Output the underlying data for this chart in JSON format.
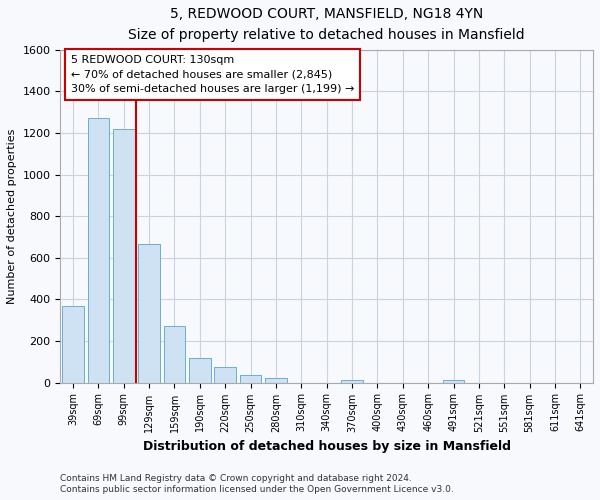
{
  "title": "5, REDWOOD COURT, MANSFIELD, NG18 4YN",
  "subtitle": "Size of property relative to detached houses in Mansfield",
  "xlabel": "Distribution of detached houses by size in Mansfield",
  "ylabel": "Number of detached properties",
  "bar_labels": [
    "39sqm",
    "69sqm",
    "99sqm",
    "129sqm",
    "159sqm",
    "190sqm",
    "220sqm",
    "250sqm",
    "280sqm",
    "310sqm",
    "340sqm",
    "370sqm",
    "400sqm",
    "430sqm",
    "460sqm",
    "491sqm",
    "521sqm",
    "551sqm",
    "581sqm",
    "611sqm",
    "641sqm"
  ],
  "bar_values": [
    370,
    1270,
    1220,
    665,
    270,
    120,
    75,
    38,
    20,
    0,
    0,
    15,
    0,
    0,
    0,
    15,
    0,
    0,
    0,
    0,
    0
  ],
  "bar_color": "#cfe2f3",
  "bar_edge_color": "#6baed6",
  "annotation_box_text_line1": "5 REDWOOD COURT: 130sqm",
  "annotation_box_text_line2": "← 70% of detached houses are smaller (2,845)",
  "annotation_box_text_line3": "30% of semi-detached houses are larger (1,199) →",
  "annotation_box_edge_color": "#cc0000",
  "annotation_box_bg": "#ffffff",
  "vline_color": "#cc0000",
  "ylim": [
    0,
    1600
  ],
  "yticks": [
    0,
    200,
    400,
    600,
    800,
    1000,
    1200,
    1400,
    1600
  ],
  "grid_color": "#c8d4e0",
  "footer_line1": "Contains HM Land Registry data © Crown copyright and database right 2024.",
  "footer_line2": "Contains public sector information licensed under the Open Government Licence v3.0.",
  "bg_color": "#f7f9fc",
  "plot_bg_color": "#f7f9fc"
}
